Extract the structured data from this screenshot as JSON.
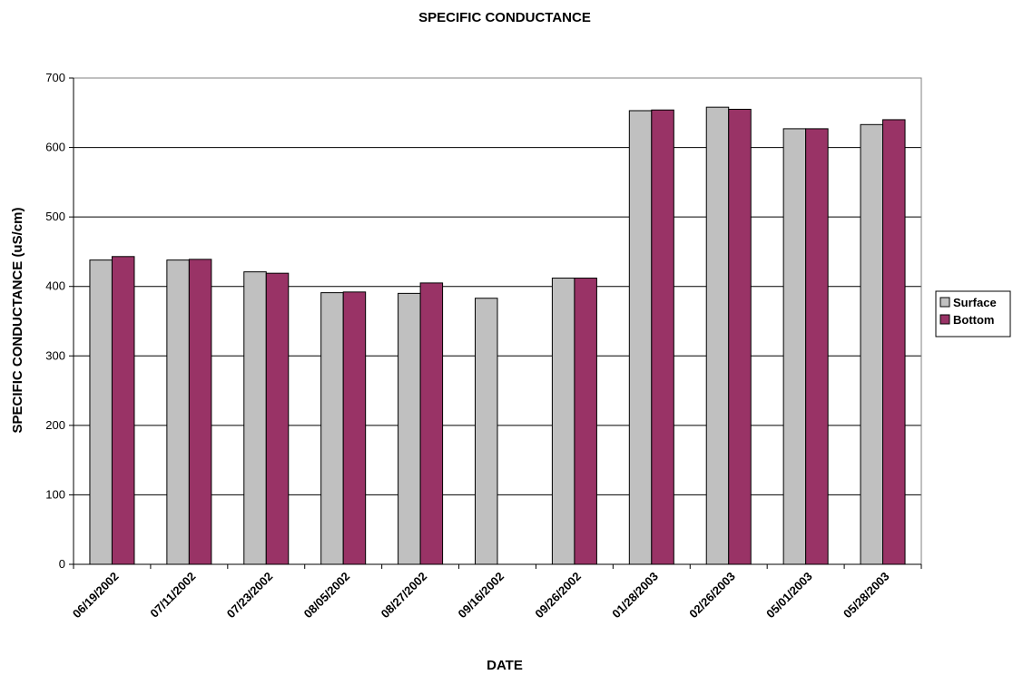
{
  "chart_data": {
    "type": "bar",
    "title": "SPECIFIC CONDUCTANCE",
    "xlabel": "DATE",
    "ylabel": "SPECIFIC CONDUCTANCE (uS/cm)",
    "ylim": [
      0,
      700
    ],
    "yticks": [
      0,
      100,
      200,
      300,
      400,
      500,
      600,
      700
    ],
    "grid": true,
    "legend_position": "right",
    "categories": [
      "06/19/2002",
      "07/11/2002",
      "07/23/2002",
      "08/05/2002",
      "08/27/2002",
      "09/16/2002",
      "09/26/2002",
      "01/28/2003",
      "02/26/2003",
      "05/01/2003",
      "05/28/2003"
    ],
    "series": [
      {
        "name": "Surface",
        "color": "#c0c0c0",
        "values": [
          438,
          438,
          421,
          391,
          390,
          383,
          412,
          653,
          658,
          627,
          633
        ]
      },
      {
        "name": "Bottom",
        "color": "#993366",
        "values": [
          443,
          439,
          419,
          392,
          405,
          null,
          412,
          654,
          655,
          627,
          640
        ]
      }
    ]
  }
}
